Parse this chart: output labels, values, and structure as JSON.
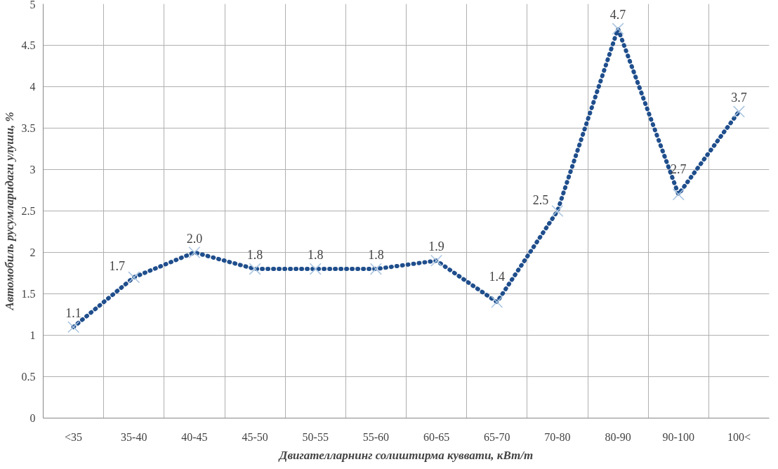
{
  "chart_data": {
    "type": "line",
    "xlabel": "Двигателларнинг солиштирма куввати, кВт/т",
    "ylabel": "Автомобиль русумларидаги улуши, %",
    "categories": [
      "<35",
      "35-40",
      "40-45",
      "45-50",
      "50-55",
      "55-60",
      "60-65",
      "65-70",
      "70-80",
      "80-90",
      "90-100",
      "100<"
    ],
    "series": [
      {
        "color": "#1f4e8c",
        "values": [
          1.1,
          1.7,
          2.0,
          1.8,
          1.8,
          1.8,
          1.9,
          1.4,
          2.5,
          4.7,
          2.7,
          3.7
        ],
        "value_labels": [
          "1.1",
          "1.7",
          "2.0",
          "1.8",
          "1.8",
          "1.8",
          "1.9",
          "1.4",
          "2.5",
          "4.7",
          "2.7",
          "3.7"
        ]
      }
    ],
    "ylim": [
      0,
      5
    ],
    "yticks": [
      0,
      0.5,
      1,
      1.5,
      2,
      2.5,
      3,
      3.5,
      4,
      4.5,
      5
    ],
    "grid": true,
    "marker": "cross",
    "line_style": "dotted"
  }
}
